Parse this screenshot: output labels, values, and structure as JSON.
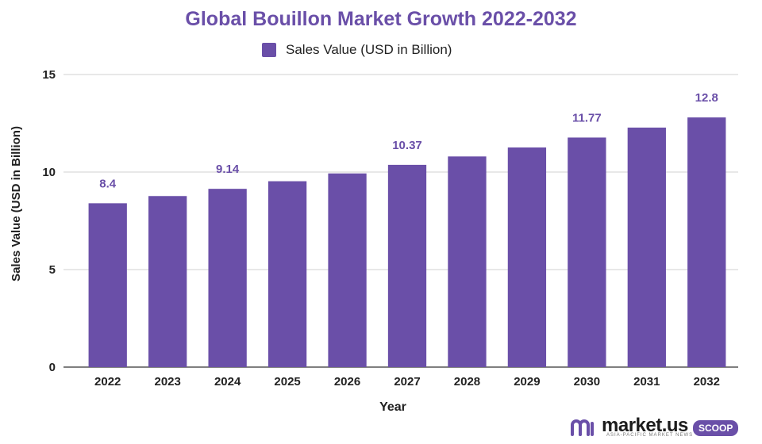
{
  "chart_data": {
    "type": "bar",
    "title": "Global Bouillon Market Growth 2022-2032",
    "xlabel": "Year",
    "ylabel": "Sales Value (USD in Billion)",
    "ylim": [
      0,
      15
    ],
    "yticks": [
      "0",
      "5",
      "10",
      "15"
    ],
    "grid": true,
    "legend_position": "top-center",
    "categories": [
      "2022",
      "2023",
      "2024",
      "2025",
      "2026",
      "2027",
      "2028",
      "2029",
      "2030",
      "2031",
      "2032"
    ],
    "series": [
      {
        "name": "Sales Value (USD in Billion)",
        "color": "#6A4FA8",
        "values": [
          8.4,
          8.77,
          9.14,
          9.53,
          9.93,
          10.37,
          10.8,
          11.26,
          11.77,
          12.28,
          12.8
        ],
        "labels": [
          "8.4",
          "",
          "9.14",
          "",
          "",
          "10.37",
          "",
          "",
          "11.77",
          "",
          "12.8"
        ]
      }
    ]
  },
  "brand": {
    "name": "market.us",
    "tagline": "ASIA-PACIFIC MARKET NEWS",
    "badge": "SCOOP",
    "logo_icon": "market-us-logo-icon"
  }
}
